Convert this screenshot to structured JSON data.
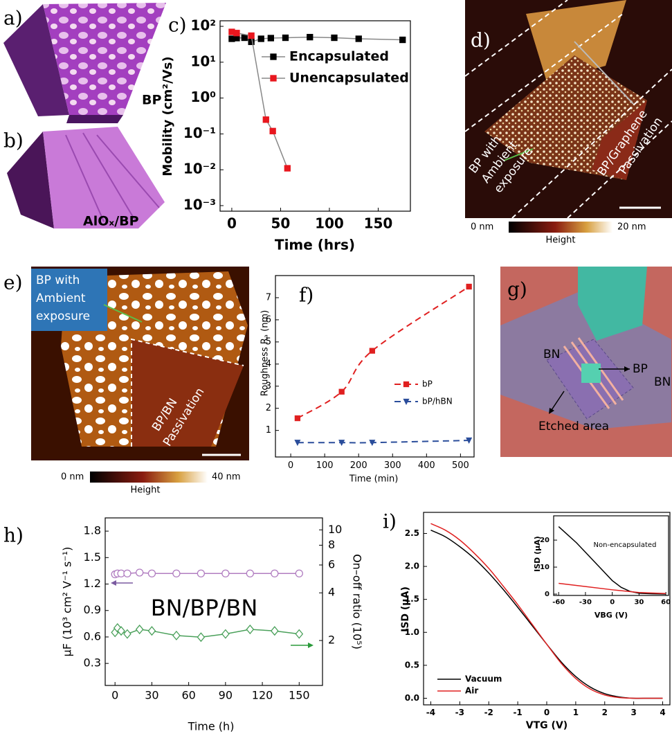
{
  "images": [
    {
      "label": "a)",
      "texts": [
        "BP"
      ]
    },
    {
      "label": "b)",
      "texts": [
        "AlOₓ/BP"
      ]
    },
    {
      "label": "d)",
      "texts": [
        "BP with",
        "Ambient",
        "exposure",
        "BP/Graphene",
        "Passivation",
        "0 nm",
        "20 nm",
        "Height"
      ]
    },
    {
      "label": "e)",
      "texts": [
        "BP with",
        "Ambient",
        "exposure",
        "BP/BN",
        "Passivation",
        "0 nm",
        "40 nm",
        "Height"
      ]
    },
    {
      "label": "g)",
      "texts": [
        "BN",
        "BP",
        "BN",
        "Etched area"
      ]
    }
  ],
  "chart_data": [
    {
      "type": "line",
      "panel": "c)",
      "xlabel": "Time (hrs)",
      "ylabel": "Mobility (cm²/Vs)",
      "xlim": [
        -12,
        183
      ],
      "xticks": [
        0,
        50,
        100,
        150
      ],
      "ylim": [
        0.0007,
        143
      ],
      "ylog": true,
      "yticks": [
        {
          "value": 100,
          "label": "10²"
        },
        {
          "value": 10,
          "label": "10¹"
        },
        {
          "value": 1,
          "label": "10⁰"
        },
        {
          "value": 0.1,
          "label": "10⁻¹"
        },
        {
          "value": 0.01,
          "label": "10⁻²"
        },
        {
          "value": 0.001,
          "label": "10⁻³"
        }
      ],
      "legend": "upper right",
      "series": [
        {
          "name": "Encapsulated",
          "color": "#000000",
          "line_color": "#888888",
          "marker": "square",
          "x": [
            0,
            5,
            13,
            20,
            30,
            40,
            55,
            80,
            105,
            130,
            175
          ],
          "values": [
            45,
            47,
            48,
            37,
            45,
            47,
            48,
            50,
            48,
            45,
            42
          ]
        },
        {
          "name": "Unencapsulated",
          "color": "#e8171e",
          "line_color": "#888888",
          "marker": "square",
          "x": [
            0,
            5,
            20,
            35,
            42,
            57
          ],
          "values": [
            70,
            65,
            55,
            0.25,
            0.12,
            0.011
          ]
        }
      ]
    },
    {
      "type": "line",
      "panel": "f)",
      "xlabel": "Time (min)",
      "ylabel": "Roughness Rₐ (nm)",
      "xlim": [
        -45,
        540
      ],
      "xticks": [
        0,
        100,
        200,
        300,
        400,
        500
      ],
      "ylim": [
        -0.2,
        8
      ],
      "yticks": [
        1,
        2,
        3,
        4,
        5,
        6,
        7
      ],
      "curve": "smooth",
      "legend": "center right",
      "series": [
        {
          "name": "bP",
          "color": "#e02020",
          "marker": "square",
          "dash": true,
          "x": [
            20,
            150,
            240,
            525
          ],
          "values": [
            1.55,
            2.75,
            4.6,
            7.5
          ]
        },
        {
          "name": "bP/hBN",
          "color": "#2a4d9b",
          "marker": "triangle",
          "dash": true,
          "x": [
            20,
            150,
            240,
            525
          ],
          "values": [
            0.45,
            0.45,
            0.45,
            0.55
          ]
        }
      ]
    },
    {
      "type": "line",
      "panel": "h)",
      "xlabel": "Time (h)",
      "ylabel": "μF (10³ cm² V⁻¹ s⁻¹)",
      "y2label": "On–off ratio (10⁵)",
      "annotations": [
        "BN/BP/BN"
      ],
      "xlim": [
        -8,
        169
      ],
      "xticks": [
        0,
        30,
        60,
        90,
        120,
        150
      ],
      "ylim": [
        0.05,
        1.95
      ],
      "yticks": [
        0.3,
        0.6,
        0.9,
        1.2,
        1.5,
        1.8
      ],
      "y2lim": [
        1.04,
        11.9
      ],
      "y2log": true,
      "y2ticks": [
        2,
        4,
        6,
        8,
        10
      ],
      "series": [
        {
          "color": "#b07cc0",
          "marker": "circle",
          "filled": false,
          "x": [
            0,
            2,
            5,
            10,
            20,
            30,
            50,
            70,
            90,
            110,
            130,
            150
          ],
          "values": [
            1.31,
            1.32,
            1.32,
            1.32,
            1.33,
            1.32,
            1.32,
            1.32,
            1.32,
            1.32,
            1.32,
            1.32
          ]
        },
        {
          "color": "#4aa05a",
          "marker": "diamond",
          "filled": false,
          "axis": "y2",
          "x": [
            0,
            2,
            5,
            10,
            20,
            30,
            50,
            70,
            90,
            110,
            130,
            150
          ],
          "values": [
            2.25,
            2.4,
            2.3,
            2.2,
            2.35,
            2.3,
            2.15,
            2.1,
            2.2,
            2.35,
            2.3,
            2.2
          ]
        }
      ]
    },
    {
      "type": "line",
      "panel": "i)",
      "xlabel": "VTG (V)",
      "ylabel": "ISD (μA)",
      "curve": "smooth",
      "xlim": [
        -4.25,
        4.25
      ],
      "xticks": [
        -4,
        -3,
        -2,
        -1,
        0,
        1,
        2,
        3,
        4
      ],
      "ylim": [
        -0.1,
        2.82
      ],
      "yticks": [
        {
          "value": 0,
          "label": "0.0"
        },
        0.5,
        {
          "value": 1,
          "label": "1.0"
        },
        1.5,
        {
          "value": 2,
          "label": "2.0"
        },
        2.5
      ],
      "legend": "lower left",
      "series": [
        {
          "name": "Vacuum",
          "color": "#000000",
          "x": [
            -4,
            -3.5,
            -3,
            -2.5,
            -2,
            -1.5,
            -1,
            -0.5,
            0,
            0.5,
            1,
            1.5,
            2,
            2.5,
            3,
            3.5,
            4
          ],
          "values": [
            2.55,
            2.45,
            2.3,
            2.12,
            1.9,
            1.65,
            1.38,
            1.1,
            0.82,
            0.55,
            0.33,
            0.17,
            0.07,
            0.02,
            0,
            0,
            0
          ]
        },
        {
          "name": "Air",
          "color": "#e02020",
          "x": [
            -4,
            -3.5,
            -3,
            -2.5,
            -2,
            -1.5,
            -1,
            -0.5,
            0,
            0.5,
            1,
            1.5,
            2,
            2.5,
            3,
            3.5,
            4
          ],
          "values": [
            2.65,
            2.55,
            2.4,
            2.2,
            1.97,
            1.7,
            1.42,
            1.12,
            0.82,
            0.53,
            0.3,
            0.14,
            0.05,
            0.01,
            0,
            0,
            0
          ]
        }
      ]
    },
    {
      "type": "line",
      "xlabel": "VBG (V)",
      "ylabel": "ISD (μA)",
      "annotations": [
        "Non-encapsulated"
      ],
      "xlim": [
        -65.6,
        63
      ],
      "xticks": [
        -60,
        -30,
        0,
        30,
        60
      ],
      "ylim": [
        -0.5,
        29
      ],
      "yticks": [
        0,
        10,
        20
      ],
      "series": [
        {
          "color": "#000000",
          "x": [
            -60,
            -50,
            -40,
            -30,
            -20,
            -10,
            0,
            10,
            20,
            30,
            45,
            60
          ],
          "values": [
            25,
            22,
            19,
            15.5,
            12,
            8.5,
            5,
            2.5,
            1,
            0.3,
            0.1,
            0
          ]
        },
        {
          "color": "#e02020",
          "x": [
            -60,
            -30,
            0,
            30,
            60
          ],
          "values": [
            4,
            2.8,
            1.6,
            0.6,
            0.2
          ]
        }
      ]
    }
  ]
}
